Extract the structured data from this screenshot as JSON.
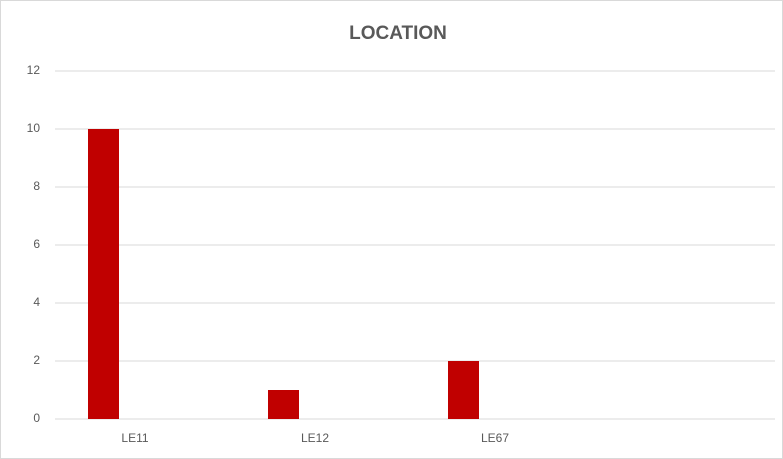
{
  "chart_data": {
    "type": "bar",
    "title": "LOCATION",
    "categories": [
      "LE11",
      "LE12",
      "LE67",
      null
    ],
    "values": [
      10,
      1,
      2,
      null
    ],
    "color": "#c00000",
    "ylim": [
      0,
      12
    ],
    "yticks": [
      0,
      2,
      4,
      6,
      8,
      10,
      12
    ],
    "grid": true
  }
}
